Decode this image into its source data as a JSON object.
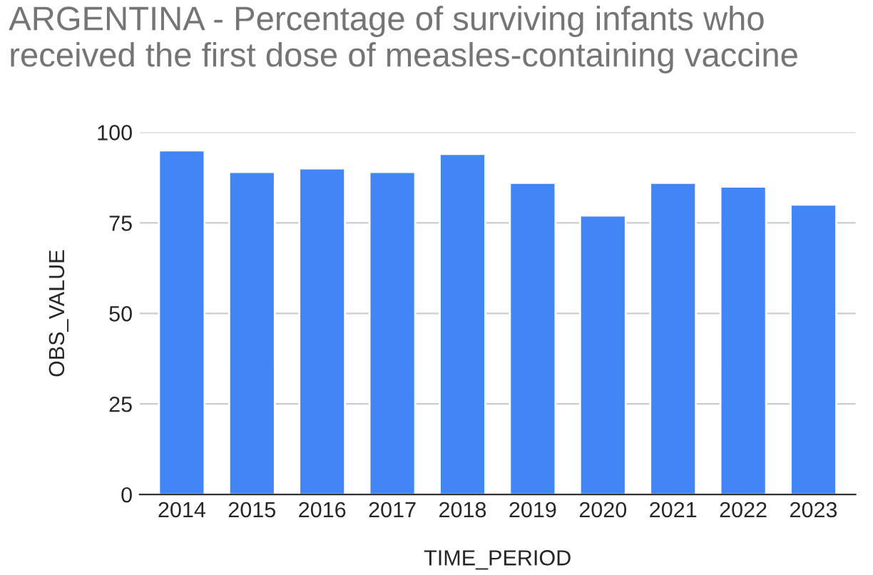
{
  "chart_data": {
    "type": "bar",
    "title": "ARGENTINA - Percentage of surviving infants who received the first dose of measles-containing vaccine",
    "categories": [
      "2014",
      "2015",
      "2016",
      "2017",
      "2018",
      "2019",
      "2020",
      "2021",
      "2022",
      "2023"
    ],
    "values": [
      95,
      89,
      90,
      89,
      94,
      86,
      77,
      86,
      85,
      80
    ],
    "color": "#4285f4",
    "xlabel": "TIME_PERIOD",
    "ylabel": "OBS_VALUE",
    "ylim": [
      0,
      100
    ],
    "yticks": [
      0,
      25,
      50,
      75,
      100
    ],
    "grid": "y"
  }
}
